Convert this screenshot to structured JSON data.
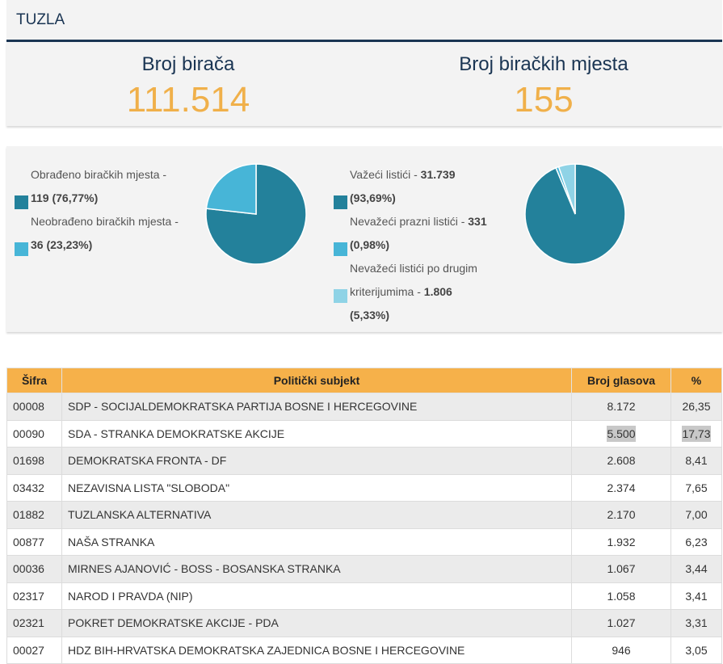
{
  "header": {
    "title": "TUZLA"
  },
  "stats": {
    "voters_label": "Broj birača",
    "voters_value": "111.514",
    "stations_label": "Broj biračkih mjesta",
    "stations_value": "155"
  },
  "pie1": {
    "legend": [
      {
        "label": "Obrađeno biračkih mjesta - ",
        "value_line2_prefix": "",
        "value": "119 (76,77%)",
        "color": "#23819b"
      },
      {
        "label": "Neobrađeno biračkih mjesta - ",
        "value": "36 (23,23%)",
        "color": "#47b5d7"
      }
    ],
    "slices": [
      76.77,
      23.23
    ],
    "colors": [
      "#23819b",
      "#47b5d7"
    ]
  },
  "pie2": {
    "legend": [
      {
        "label": "Važeći listići - ",
        "value": "31.739",
        "pct": "(93,69%)",
        "color": "#23819b"
      },
      {
        "label": "Nevažeći prazni listići - ",
        "value": "331",
        "pct": "(0,98%)",
        "color": "#47b5d7"
      },
      {
        "label_line1": "Nevažeći listići po drugim",
        "label_line2": "kriterijumima - ",
        "value": "1.806",
        "pct": "(5,33%)",
        "color": "#8fd3e6"
      }
    ],
    "slices": [
      93.69,
      0.98,
      5.33
    ],
    "colors": [
      "#23819b",
      "#47b5d7",
      "#8fd3e6"
    ]
  },
  "table": {
    "headers": [
      "Šifra",
      "Politički subjekt",
      "Broj glasova",
      "%"
    ],
    "rows": [
      {
        "code": "00008",
        "name": "SDP - SOCIJALDEMOKRATSKA PARTIJA BOSNE I HERCEGOVINE",
        "votes": "8.172",
        "pct": "26,35"
      },
      {
        "code": "00090",
        "name": "SDA - STRANKA DEMOKRATSKE AKCIJE",
        "votes": "5.500",
        "pct": "17,73",
        "highlight": true
      },
      {
        "code": "01698",
        "name": "DEMOKRATSKA FRONTA - DF",
        "votes": "2.608",
        "pct": "8,41"
      },
      {
        "code": "03432",
        "name": "NEZAVISNA LISTA \"SLOBODA\"",
        "votes": "2.374",
        "pct": "7,65"
      },
      {
        "code": "01882",
        "name": "TUZLANSKA ALTERNATIVA",
        "votes": "2.170",
        "pct": "7,00"
      },
      {
        "code": "00877",
        "name": "NAŠA STRANKA",
        "votes": "1.932",
        "pct": "6,23"
      },
      {
        "code": "00036",
        "name": "MIRNES AJANOVIĆ - BOSS - BOSANSKA STRANKA",
        "votes": "1.067",
        "pct": "3,44"
      },
      {
        "code": "02317",
        "name": "NAROD I PRAVDA (NIP)",
        "votes": "1.058",
        "pct": "3,41"
      },
      {
        "code": "02321",
        "name": "POKRET DEMOKRATSKE AKCIJE - PDA",
        "votes": "1.027",
        "pct": "3,31"
      },
      {
        "code": "00027",
        "name": "HDZ BIH-HRVATSKA DEMOKRATSKA ZAJEDNICA BOSNE I HERCEGOVINE",
        "votes": "946",
        "pct": "3,05"
      }
    ]
  }
}
